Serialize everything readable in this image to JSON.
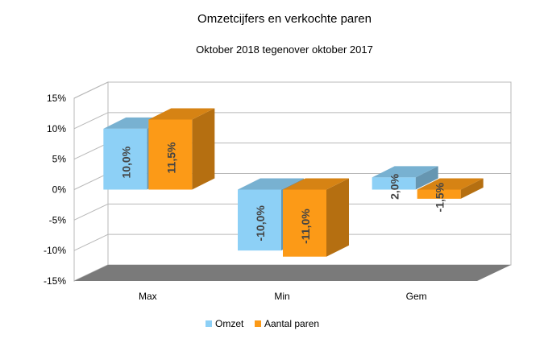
{
  "chart_data": {
    "type": "bar",
    "title": "Omzetcijfers en verkochte paren",
    "subtitle": "Oktober 2018 tegenover oktober 2017",
    "categories": [
      "Max",
      "Min",
      "Gem"
    ],
    "series": [
      {
        "name": "Omzet",
        "values": [
          10.0,
          -10.0,
          2.0
        ],
        "labels": [
          "10,0%",
          "-10,0%",
          "2,0%"
        ],
        "color": "#8dd0f6"
      },
      {
        "name": "Aantal paren",
        "values": [
          11.5,
          -11.0,
          -1.5
        ],
        "labels": [
          "11,5%",
          "-11,0%",
          "-1,5%"
        ],
        "color": "#fc9a17"
      }
    ],
    "yticks": [
      "15%",
      "10%",
      "5%",
      "0%",
      "-5%",
      "-10%",
      "-15%"
    ],
    "ylim": [
      -15,
      15
    ],
    "grid": true,
    "three_d": true,
    "legend_position": "bottom"
  }
}
